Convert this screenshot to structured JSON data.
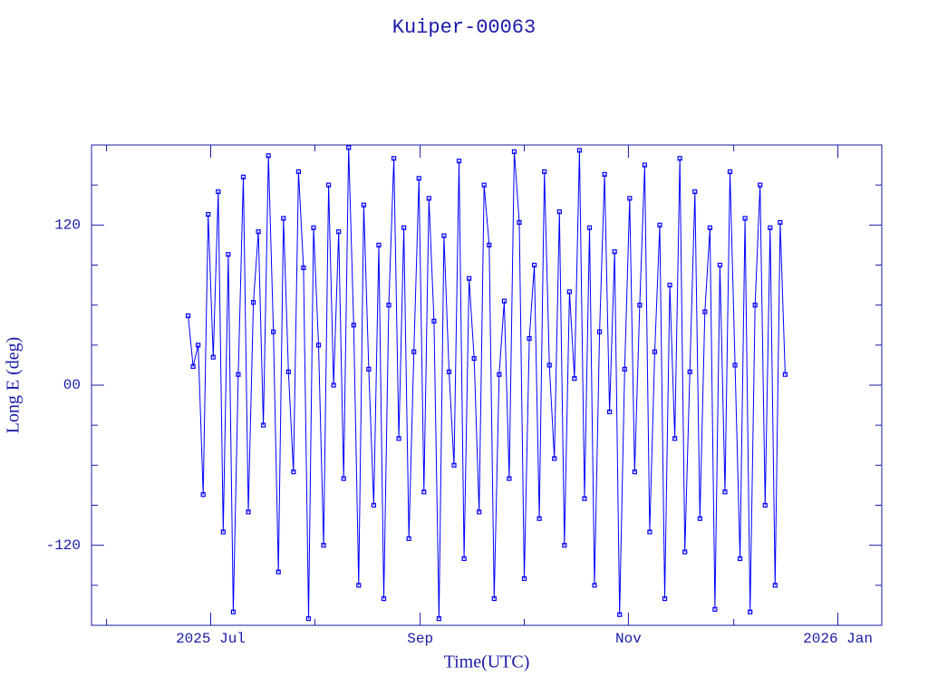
{
  "chart_data": {
    "type": "line",
    "title": "Kuiper-00063",
    "xlabel": "Time(UTC)",
    "ylabel": "Long E (deg)",
    "x": [
      2025.482,
      2025.486,
      2025.49,
      2025.494,
      2025.498,
      2025.502,
      2025.506,
      2025.51,
      2025.514,
      2025.518,
      2025.522,
      2025.526,
      2025.53,
      2025.534,
      2025.538,
      2025.542,
      2025.546,
      2025.55,
      2025.554,
      2025.558,
      2025.562,
      2025.566,
      2025.57,
      2025.574,
      2025.578,
      2025.582,
      2025.586,
      2025.59,
      2025.594,
      2025.598,
      2025.602,
      2025.606,
      2025.61,
      2025.614,
      2025.618,
      2025.622,
      2025.626,
      2025.63,
      2025.634,
      2025.638,
      2025.642,
      2025.646,
      2025.65,
      2025.654,
      2025.658,
      2025.662,
      2025.666,
      2025.67,
      2025.674,
      2025.678,
      2025.682,
      2025.686,
      2025.69,
      2025.694,
      2025.698,
      2025.702,
      2025.706,
      2025.71,
      2025.714,
      2025.718,
      2025.722,
      2025.726,
      2025.73,
      2025.734,
      2025.738,
      2025.742,
      2025.746,
      2025.75,
      2025.754,
      2025.758,
      2025.762,
      2025.766,
      2025.77,
      2025.774,
      2025.778,
      2025.782,
      2025.786,
      2025.79,
      2025.794,
      2025.798,
      2025.802,
      2025.806,
      2025.81,
      2025.814,
      2025.818,
      2025.822,
      2025.826,
      2025.83,
      2025.834,
      2025.838,
      2025.842,
      2025.846,
      2025.85,
      2025.854,
      2025.858,
      2025.862,
      2025.866,
      2025.87,
      2025.874,
      2025.878,
      2025.882,
      2025.886,
      2025.89,
      2025.894,
      2025.898,
      2025.902,
      2025.906,
      2025.91,
      2025.914,
      2025.918,
      2025.922,
      2025.926,
      2025.93,
      2025.934,
      2025.938,
      2025.942,
      2025.946,
      2025.95,
      2025.954,
      2025.958
    ],
    "series": [
      {
        "color": "#0000ff",
        "values": [
          52,
          14,
          30,
          -82,
          128,
          21,
          145,
          -110,
          98,
          -170,
          8,
          156,
          -95,
          62,
          115,
          -30,
          172,
          40,
          -140,
          125,
          10,
          -65,
          160,
          88,
          -175,
          118,
          30,
          -120,
          150,
          0,
          115,
          -70,
          178,
          45,
          -150,
          135,
          12,
          -90,
          105,
          -160,
          60,
          170,
          -40,
          118,
          -115,
          25,
          155,
          -80,
          140,
          48,
          -175,
          112,
          10,
          -60,
          168,
          -130,
          80,
          20,
          -95,
          150,
          105,
          -160,
          8,
          63,
          -70,
          175,
          122,
          -145,
          35,
          90,
          -100,
          160,
          15,
          -55,
          130,
          -120,
          70,
          5,
          176,
          -85,
          118,
          -150,
          40,
          158,
          -20,
          100,
          -172,
          12,
          140,
          -65,
          60,
          165,
          -110,
          25,
          120,
          -160,
          75,
          -40,
          170,
          -125,
          10,
          145,
          -100,
          55,
          118,
          -168,
          90,
          -80,
          160,
          15,
          -130,
          125,
          -170,
          60,
          150,
          -90,
          118,
          -150,
          122,
          8
        ]
      }
    ],
    "xlim": [
      2025.405,
      2026.035
    ],
    "xticks": [
      {
        "value": 2025.5,
        "label": "2025 Jul"
      },
      {
        "value": 2025.667,
        "label": "Sep"
      },
      {
        "value": 2025.833,
        "label": "Nov"
      },
      {
        "value": 2026.0,
        "label": "2026 Jan"
      }
    ],
    "minor_xticks": [
      2025.417,
      2025.583,
      2025.75,
      2025.917
    ],
    "ylim": [
      -180,
      180
    ],
    "yticks": [
      -120,
      {
        "value": 0,
        "label": "00"
      },
      120
    ],
    "minor_yticks": [
      -150,
      -90,
      -60,
      -30,
      30,
      60,
      90,
      150
    ],
    "axis_color": "#1a1aa8"
  }
}
